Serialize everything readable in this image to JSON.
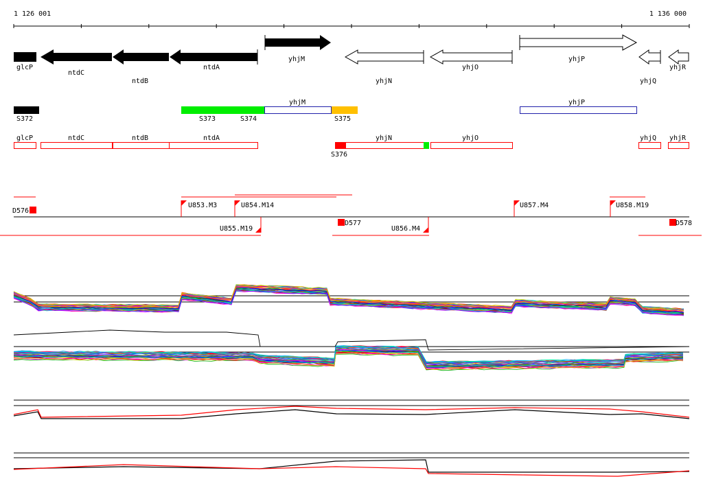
{
  "coords": {
    "start": "1 126 001",
    "end": "1 136 000"
  },
  "genes": [
    {
      "name": "glcP",
      "strand": "-",
      "label": "glcP"
    },
    {
      "name": "ntdC",
      "strand": "-",
      "label": "ntdC"
    },
    {
      "name": "ntdB",
      "strand": "-",
      "label": "ntdB"
    },
    {
      "name": "ntdA",
      "strand": "-",
      "label": "ntdA"
    },
    {
      "name": "yhjM",
      "strand": "+",
      "label": "yhjM"
    },
    {
      "name": "yhjN",
      "strand": "-",
      "label": "yhjN"
    },
    {
      "name": "yhjO",
      "strand": "-",
      "label": "yhjO"
    },
    {
      "name": "yhjP",
      "strand": "+",
      "label": "yhjP"
    },
    {
      "name": "yhjQ",
      "strand": "-",
      "label": "yhjQ"
    },
    {
      "name": "yhjR",
      "strand": "-",
      "label": "yhjR"
    }
  ],
  "segments_plus": [
    {
      "id": "S372",
      "label": "S372",
      "color": "#000000"
    },
    {
      "id": "S373",
      "label": "S373",
      "color": "#00ee00"
    },
    {
      "id": "S374",
      "label": "S374",
      "color": "#00ee00"
    },
    {
      "id": "yhjM",
      "label": "yhjM",
      "color": "#2020aa"
    },
    {
      "id": "S375",
      "label": "S375",
      "color": "#ffc000"
    },
    {
      "id": "yhjP",
      "label": "yhjP",
      "color": "#2020aa"
    }
  ],
  "segments_minus": [
    {
      "id": "glcP",
      "label": "glcP"
    },
    {
      "id": "ntdC",
      "label": "ntdC"
    },
    {
      "id": "ntdB",
      "label": "ntdB"
    },
    {
      "id": "ntdA",
      "label": "ntdA"
    },
    {
      "id": "S376",
      "label": "S376"
    },
    {
      "id": "yhjN",
      "label": "yhjN"
    },
    {
      "id": "yhjO",
      "label": "yhjO"
    },
    {
      "id": "yhjQ",
      "label": "yhjQ"
    },
    {
      "id": "yhjR",
      "label": "yhjR"
    }
  ],
  "tus_up": [
    {
      "id": "D576",
      "label": "D576"
    },
    {
      "id": "U853.M3",
      "label": "U853.M3"
    },
    {
      "id": "U854.M14",
      "label": "U854.M14"
    },
    {
      "id": "U857.M4",
      "label": "U857.M4"
    },
    {
      "id": "U858.M19",
      "label": "U858.M19"
    }
  ],
  "tus_down": [
    {
      "id": "U855.M19",
      "label": "U855.M19"
    },
    {
      "id": "D577",
      "label": "D577"
    },
    {
      "id": "U856.M4",
      "label": "U856.M4"
    },
    {
      "id": "D578",
      "label": "D578"
    }
  ],
  "colors": {
    "gene_fill": "#000000",
    "red": "#ff0000",
    "green": "#00ee00",
    "orange": "#ffc000",
    "blue": "#2020aa"
  }
}
